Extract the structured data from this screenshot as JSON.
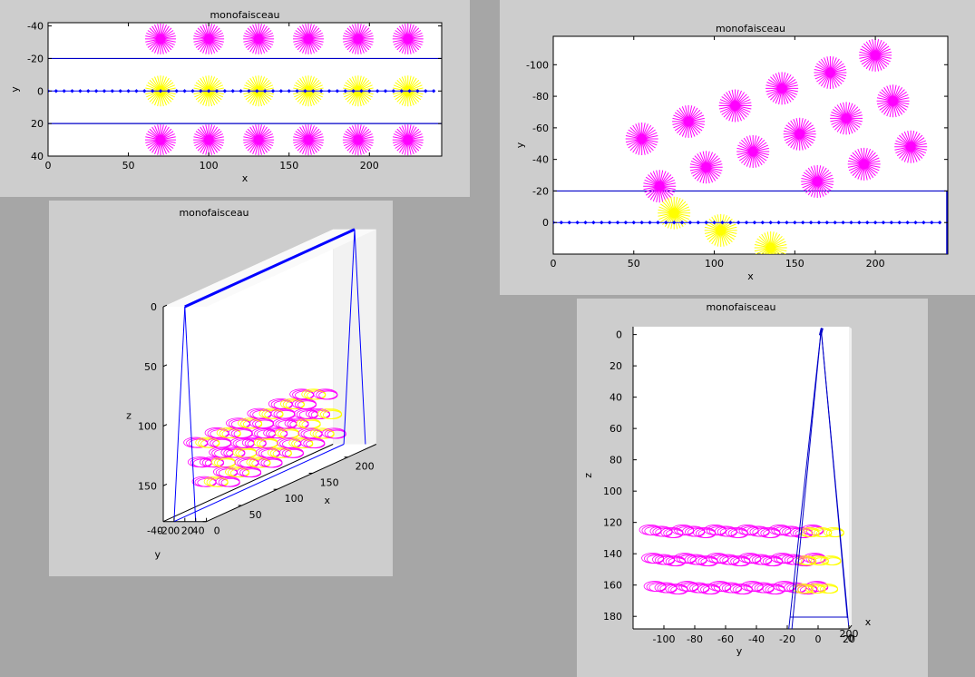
{
  "chart_data": [
    {
      "type": "scatter",
      "title": "monofaisceau",
      "xlabel": "x",
      "ylabel": "y",
      "xlim": [
        0,
        245
      ],
      "ylim": [
        -42,
        40
      ],
      "y_reversed": true,
      "xticks": [
        0,
        50,
        100,
        150,
        200
      ],
      "yticks": [
        -40,
        -20,
        0,
        20,
        40
      ],
      "beam_line": {
        "color": "#0000ff",
        "points": [
          [
            0,
            0
          ],
          [
            240,
            0
          ]
        ],
        "spacing": 5
      },
      "beam_edges": [
        -20,
        20
      ],
      "series": [
        {
          "color": "#ff00ff",
          "points": [
            [
              70,
              -32
            ],
            [
              100,
              -32
            ],
            [
              131,
              -32
            ],
            [
              162,
              -32
            ],
            [
              193,
              -32
            ],
            [
              224,
              -32
            ],
            [
              70,
              30
            ],
            [
              100,
              30
            ],
            [
              131,
              30
            ],
            [
              162,
              30
            ],
            [
              193,
              30
            ],
            [
              224,
              30
            ]
          ]
        },
        {
          "color": "#ffff00",
          "points": [
            [
              70,
              0
            ],
            [
              100,
              0
            ],
            [
              131,
              0
            ],
            [
              162,
              0
            ],
            [
              193,
              0
            ],
            [
              224,
              0
            ]
          ]
        }
      ]
    },
    {
      "type": "scatter",
      "title": "monofaisceau",
      "xlabel": "x",
      "ylabel": "y",
      "xlim": [
        0,
        245
      ],
      "ylim": [
        -118,
        20
      ],
      "y_reversed": true,
      "xticks": [
        0,
        50,
        100,
        150,
        200
      ],
      "yticks": [
        -100,
        -80,
        -60,
        -40,
        -20,
        0
      ],
      "beam_line": {
        "color": "#0000ff",
        "points": [
          [
            0,
            0
          ],
          [
            240,
            0
          ]
        ],
        "spacing": 5
      },
      "beam_edges": [
        -20
      ],
      "series": [
        {
          "color": "#ff00ff",
          "points": [
            [
              55,
              -53
            ],
            [
              66,
              -23
            ],
            [
              84,
              -64
            ],
            [
              95,
              -35
            ],
            [
              113,
              -74
            ],
            [
              124,
              -45
            ],
            [
              142,
              -85
            ],
            [
              153,
              -56
            ],
            [
              164,
              -26
            ],
            [
              172,
              -95
            ],
            [
              182,
              -66
            ],
            [
              193,
              -37
            ],
            [
              200,
              -106
            ],
            [
              211,
              -77
            ],
            [
              222,
              -48
            ]
          ]
        },
        {
          "color": "#ffff00",
          "points": [
            [
              75,
              -6
            ],
            [
              104,
              5
            ],
            [
              135,
              16
            ]
          ]
        }
      ]
    },
    {
      "type": "scatter",
      "title": "monofaisceau",
      "xlabel": "x",
      "ylabel": "y",
      "zlabel": "z",
      "xlim": [
        0,
        240
      ],
      "ylim": [
        -40,
        40
      ],
      "zlim": [
        0,
        180
      ],
      "z_reversed": true,
      "xticks": [
        0,
        50,
        100,
        150,
        200
      ],
      "yticks": [
        -40,
        -20,
        0,
        20,
        40
      ],
      "zticks": [
        0,
        50,
        100,
        150
      ],
      "layers_z": [
        125,
        143,
        161
      ],
      "series": [
        {
          "color": "#ff00ff"
        },
        {
          "color": "#ffff00"
        },
        {
          "color": "#0000ff"
        }
      ]
    },
    {
      "type": "scatter",
      "title": "monofaisceau",
      "xlabel": "x",
      "ylabel": "y",
      "zlabel": "z",
      "ylim": [
        -120,
        20
      ],
      "zlim": [
        -5,
        188
      ],
      "z_reversed": true,
      "xticks": [
        0,
        200
      ],
      "yticks": [
        -100,
        -80,
        -60,
        -40,
        -20,
        0,
        20
      ],
      "zticks": [
        0,
        20,
        40,
        60,
        80,
        100,
        120,
        140,
        160,
        180
      ],
      "layers_z": [
        126,
        144,
        162
      ],
      "series": [
        {
          "color": "#ff00ff",
          "name": ""
        },
        {
          "color": "#ffff00",
          "name": ""
        }
      ]
    }
  ]
}
